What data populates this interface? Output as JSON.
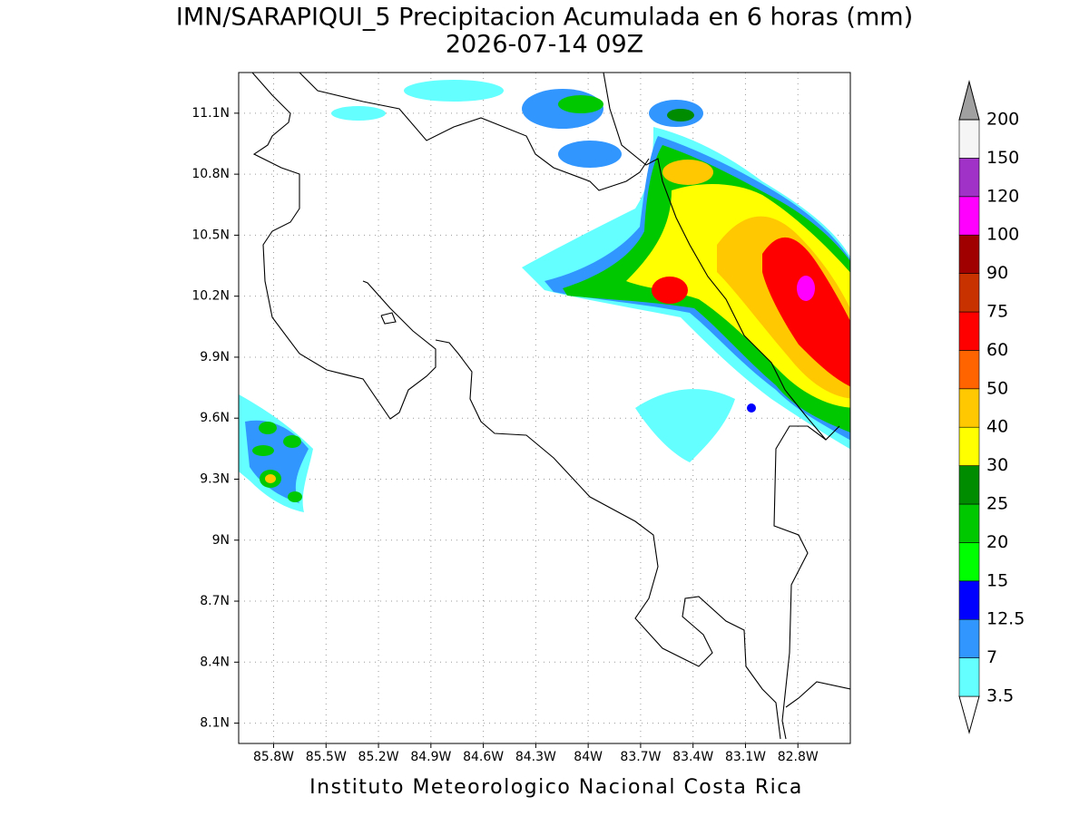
{
  "map": {
    "title": "IMN/SARAPIQUI_5 Precipitacion Acumulada en 6 horas (mm)",
    "subtitle": "2026-07-14 09Z",
    "footer": "Instituto Meteorologico Nacional Costa Rica",
    "xlim": [
      -86.0,
      -82.5
    ],
    "ylim": [
      8.0,
      11.3
    ],
    "xticks": [
      {
        "value": -85.8,
        "label": "85.8W"
      },
      {
        "value": -85.5,
        "label": "85.5W"
      },
      {
        "value": -85.2,
        "label": "85.2W"
      },
      {
        "value": -84.9,
        "label": "84.9W"
      },
      {
        "value": -84.6,
        "label": "84.6W"
      },
      {
        "value": -84.3,
        "label": "84.3W"
      },
      {
        "value": -84.0,
        "label": "84W"
      },
      {
        "value": -83.7,
        "label": "83.7W"
      },
      {
        "value": -83.4,
        "label": "83.4W"
      },
      {
        "value": -83.1,
        "label": "83.1W"
      },
      {
        "value": -82.8,
        "label": "82.8W"
      }
    ],
    "yticks": [
      {
        "value": 8.1,
        "label": "8.1N"
      },
      {
        "value": 8.4,
        "label": "8.4N"
      },
      {
        "value": 8.7,
        "label": "8.7N"
      },
      {
        "value": 9.0,
        "label": "9N"
      },
      {
        "value": 9.3,
        "label": "9.3N"
      },
      {
        "value": 9.6,
        "label": "9.6N"
      },
      {
        "value": 9.9,
        "label": "9.9N"
      },
      {
        "value": 10.2,
        "label": "10.2N"
      },
      {
        "value": 10.5,
        "label": "10.5N"
      },
      {
        "value": 10.8,
        "label": "10.8N"
      },
      {
        "value": 11.1,
        "label": "11.1N"
      }
    ],
    "grid": true,
    "colorbar": {
      "levels": [
        3.5,
        7,
        12.5,
        15,
        20,
        25,
        30,
        40,
        50,
        60,
        75,
        90,
        100,
        120,
        150,
        200
      ],
      "colors": [
        "#ffffff",
        "#64ffff",
        "#3296ff",
        "#0000ff",
        "#00ff00",
        "#00c800",
        "#008c00",
        "#ffff00",
        "#ffc800",
        "#ff6400",
        "#ff0000",
        "#c83200",
        "#a00000",
        "#ff00ff",
        "#a032c8",
        "#f5f5f5",
        "#a0a0a0"
      ]
    }
  }
}
